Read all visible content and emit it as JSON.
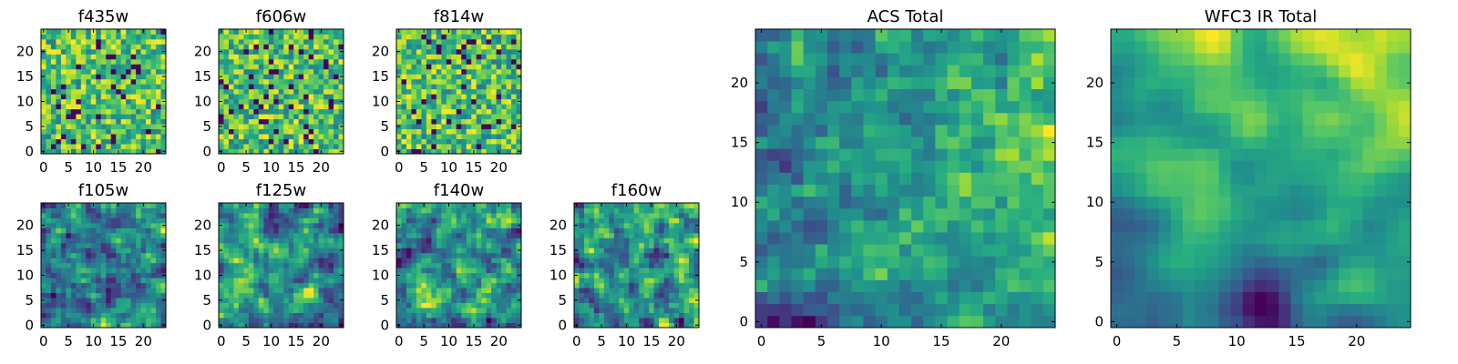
{
  "figure": {
    "colormap": "viridis"
  },
  "chart_data": [
    {
      "type": "heatmap",
      "title": "f435w",
      "grid_size": 25,
      "xlim": [
        0,
        24
      ],
      "ylim": [
        0,
        24
      ],
      "xticks": [
        0,
        5,
        10,
        15,
        20
      ],
      "yticks": [
        0,
        5,
        10,
        15,
        20
      ],
      "pattern": "noisy",
      "seed": 11
    },
    {
      "type": "heatmap",
      "title": "f606w",
      "grid_size": 25,
      "xlim": [
        0,
        24
      ],
      "ylim": [
        0,
        24
      ],
      "xticks": [
        0,
        5,
        10,
        15,
        20
      ],
      "yticks": [
        0,
        5,
        10,
        15,
        20
      ],
      "pattern": "noisy",
      "seed": 23
    },
    {
      "type": "heatmap",
      "title": "f814w",
      "grid_size": 25,
      "xlim": [
        0,
        24
      ],
      "ylim": [
        0,
        24
      ],
      "xticks": [
        0,
        5,
        10,
        15,
        20
      ],
      "yticks": [
        0,
        5,
        10,
        15,
        20
      ],
      "pattern": "noisy",
      "seed": 37
    },
    {
      "type": "heatmap",
      "title": "f105w",
      "grid_size": 25,
      "xlim": [
        0,
        24
      ],
      "ylim": [
        0,
        24
      ],
      "xticks": [
        0,
        5,
        10,
        15,
        20
      ],
      "yticks": [
        0,
        5,
        10,
        15,
        20
      ],
      "pattern": "smooth",
      "seed": 41
    },
    {
      "type": "heatmap",
      "title": "f125w",
      "grid_size": 25,
      "xlim": [
        0,
        24
      ],
      "ylim": [
        0,
        24
      ],
      "xticks": [
        0,
        5,
        10,
        15,
        20
      ],
      "yticks": [
        0,
        5,
        10,
        15,
        20
      ],
      "pattern": "smooth",
      "seed": 53
    },
    {
      "type": "heatmap",
      "title": "f140w",
      "grid_size": 25,
      "xlim": [
        0,
        24
      ],
      "ylim": [
        0,
        24
      ],
      "xticks": [
        0,
        5,
        10,
        15,
        20
      ],
      "yticks": [
        0,
        5,
        10,
        15,
        20
      ],
      "pattern": "smooth",
      "seed": 67
    },
    {
      "type": "heatmap",
      "title": "f160w",
      "grid_size": 25,
      "xlim": [
        0,
        24
      ],
      "ylim": [
        0,
        24
      ],
      "xticks": [
        0,
        5,
        10,
        15,
        20
      ],
      "yticks": [
        0,
        5,
        10,
        15,
        20
      ],
      "pattern": "smooth",
      "seed": 79
    },
    {
      "type": "heatmap",
      "title": "ACS Total",
      "grid_size": 25,
      "xlim": [
        0,
        24
      ],
      "ylim": [
        0,
        24
      ],
      "xticks": [
        0,
        5,
        10,
        15,
        20
      ],
      "yticks": [
        0,
        5,
        10,
        15,
        20
      ],
      "pattern": "acs",
      "seed": 97
    },
    {
      "type": "heatmap",
      "title": "WFC3 IR Total",
      "grid_size": 25,
      "xlim": [
        0,
        24
      ],
      "ylim": [
        0,
        24
      ],
      "xticks": [
        0,
        5,
        10,
        15,
        20
      ],
      "yticks": [
        0,
        5,
        10,
        15,
        20
      ],
      "pattern": "ir",
      "seed": 101
    }
  ]
}
